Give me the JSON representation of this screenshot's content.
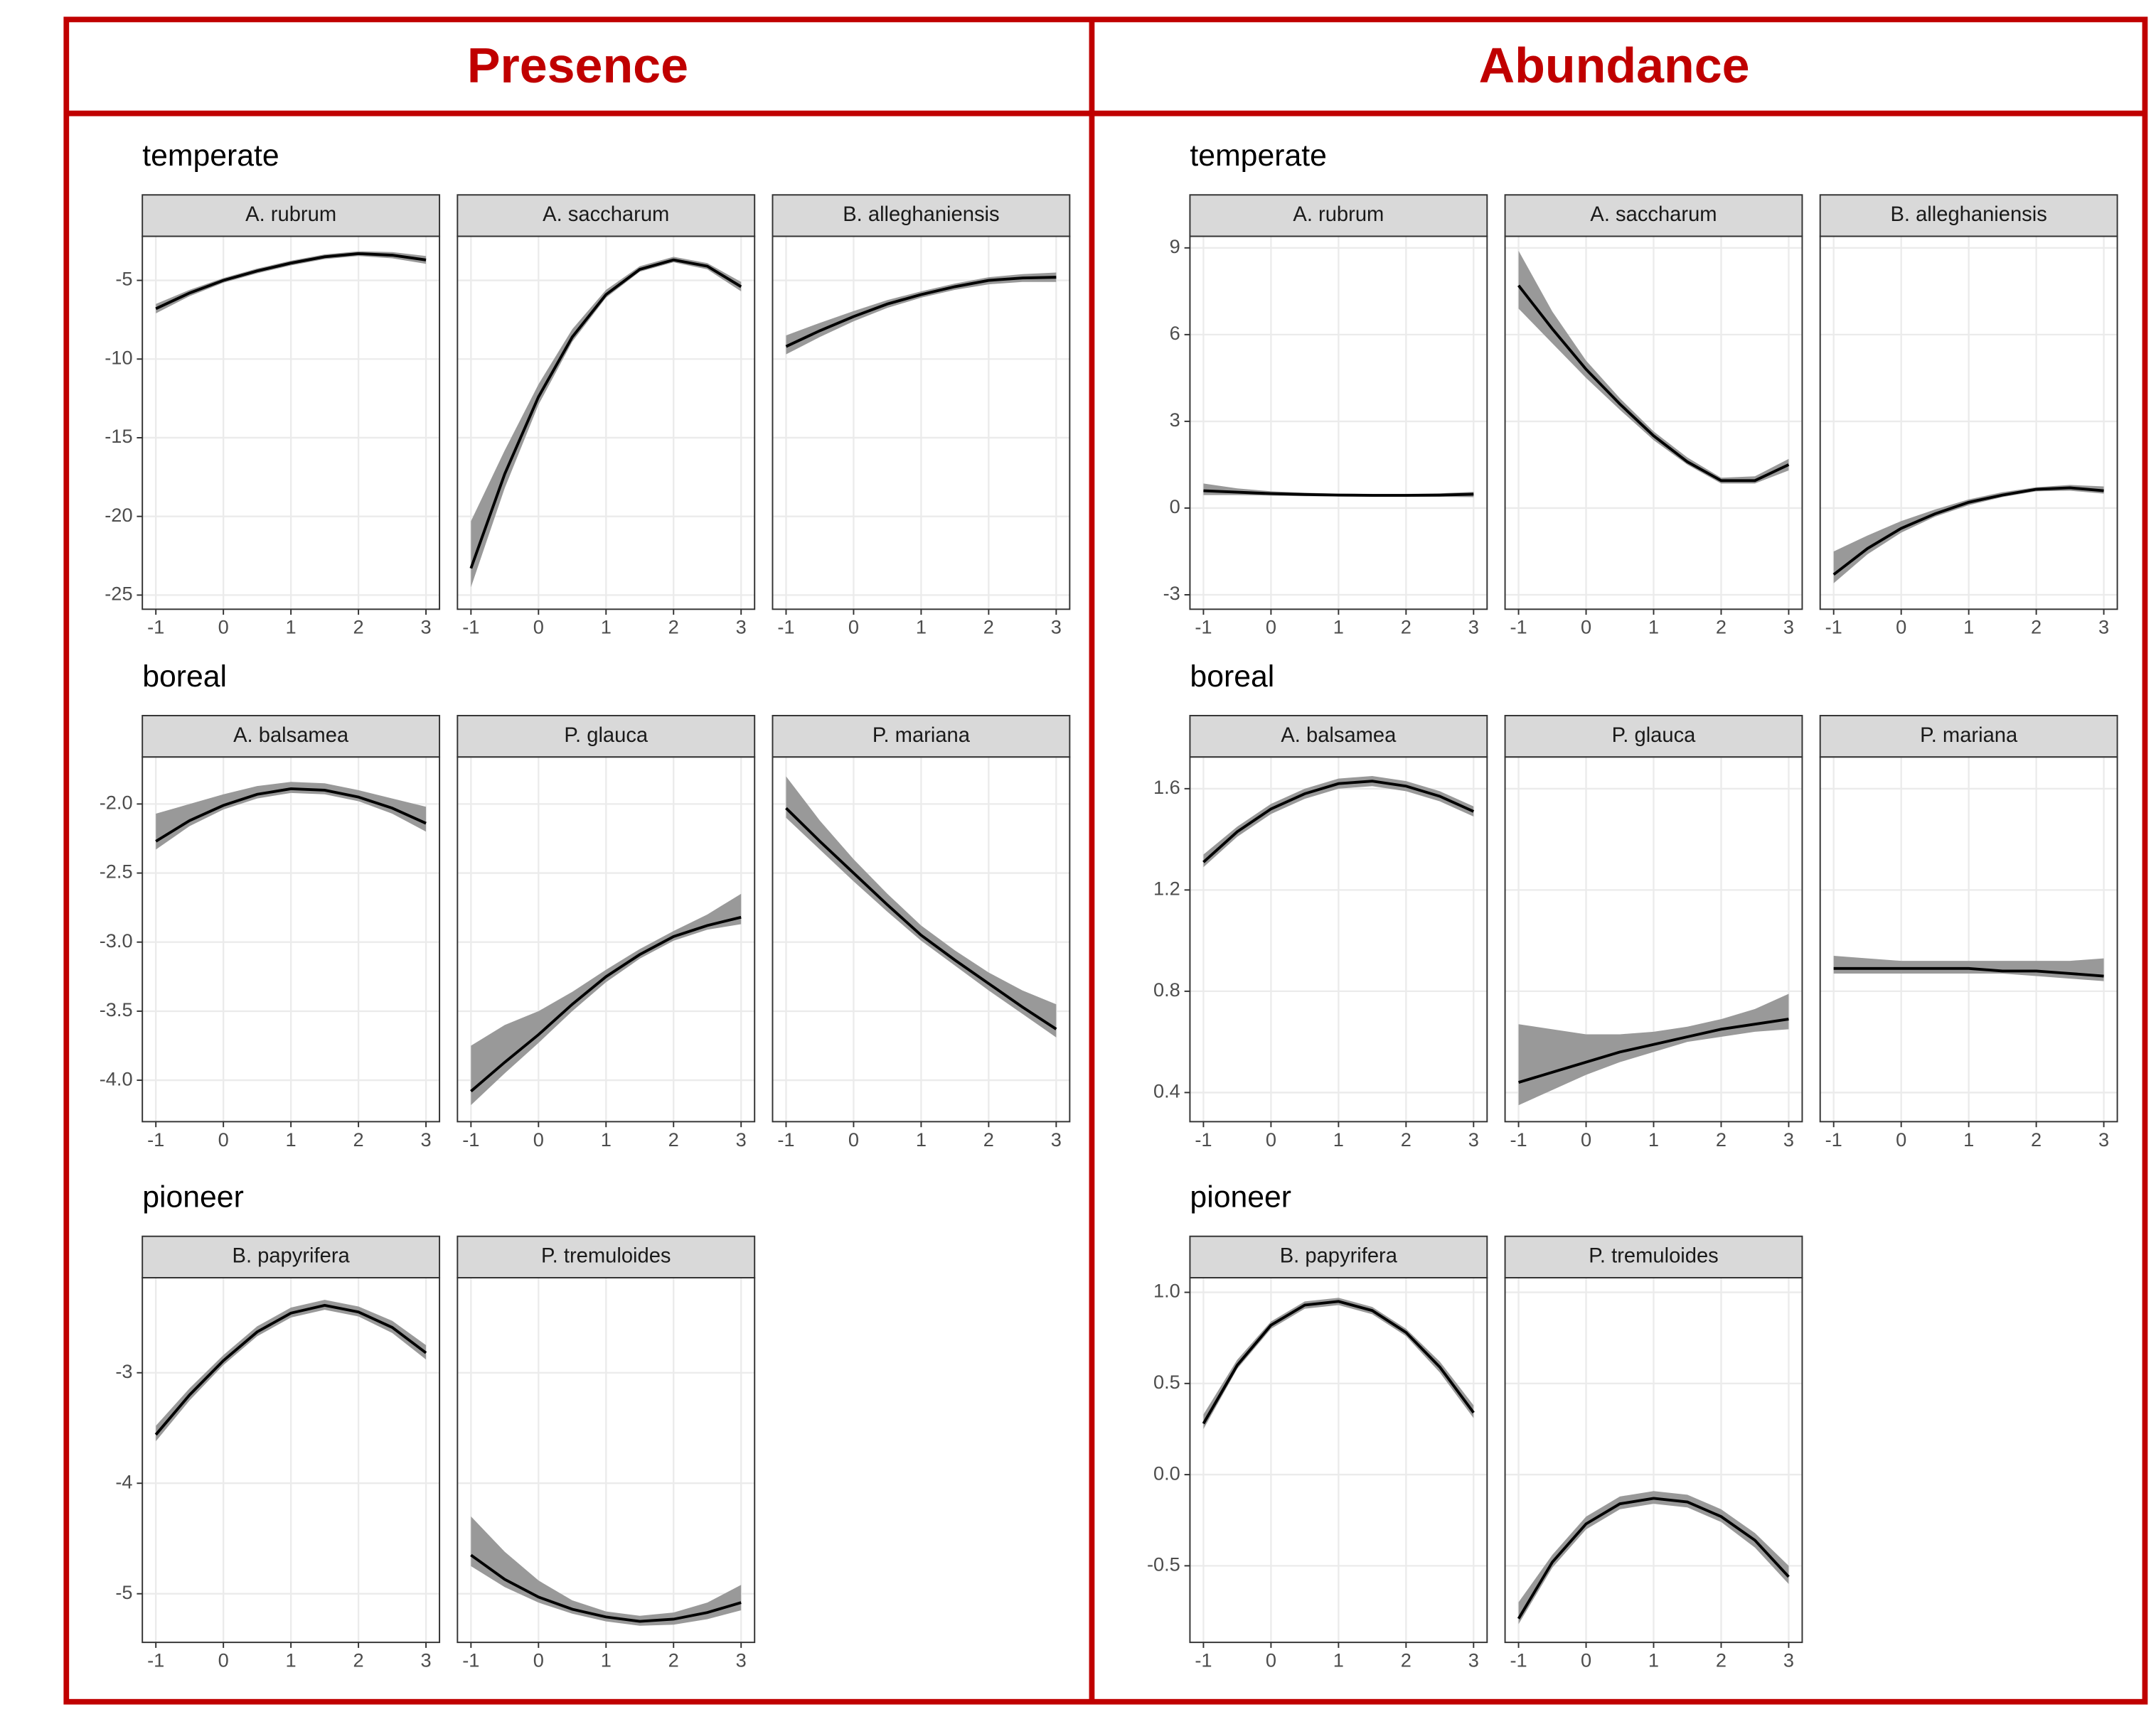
{
  "chart_data": [
    {
      "type": "line",
      "title": "Presence",
      "groups": [
        {
          "title": "temperate",
          "x": [
            -1,
            -0.5,
            0,
            0.5,
            1,
            1.5,
            2,
            2.5,
            3
          ],
          "xlim": [
            -1.2,
            3.2
          ],
          "xticks": [
            -1,
            0,
            1,
            2,
            3
          ],
          "ylim": [
            -25.9,
            -2.2
          ],
          "yticks": [
            -5,
            -10,
            -15,
            -20,
            -25
          ],
          "panels": [
            {
              "title": "A. rubrum",
              "values": [
                -6.8,
                -5.8,
                -5.0,
                -4.4,
                -3.9,
                -3.5,
                -3.3,
                -3.4,
                -3.7
              ],
              "lower": [
                -7.1,
                -6.0,
                -5.15,
                -4.55,
                -4.05,
                -3.65,
                -3.45,
                -3.6,
                -3.95
              ],
              "upper": [
                -6.5,
                -5.6,
                -4.85,
                -4.25,
                -3.75,
                -3.35,
                -3.15,
                -3.2,
                -3.45
              ]
            },
            {
              "title": "A. saccharum",
              "values": [
                -23.3,
                -17.3,
                -12.4,
                -8.6,
                -5.9,
                -4.3,
                -3.7,
                -4.1,
                -5.4
              ],
              "lower": [
                -24.5,
                -18.2,
                -12.9,
                -8.9,
                -6.1,
                -4.45,
                -3.85,
                -4.3,
                -5.7
              ],
              "upper": [
                -20.3,
                -15.8,
                -11.6,
                -8.1,
                -5.6,
                -4.1,
                -3.5,
                -3.9,
                -5.1
              ]
            },
            {
              "title": "B. alleghaniensis",
              "values": [
                -9.2,
                -8.2,
                -7.3,
                -6.5,
                -5.9,
                -5.4,
                -5.0,
                -4.85,
                -4.8
              ],
              "lower": [
                -9.7,
                -8.6,
                -7.6,
                -6.75,
                -6.1,
                -5.6,
                -5.25,
                -5.1,
                -5.1
              ],
              "upper": [
                -8.5,
                -7.7,
                -6.95,
                -6.25,
                -5.7,
                -5.2,
                -4.8,
                -4.6,
                -4.5
              ]
            }
          ]
        },
        {
          "title": "boreal",
          "x": [
            -1,
            -0.5,
            0,
            0.5,
            1,
            1.5,
            2,
            2.5,
            3
          ],
          "xlim": [
            -1.2,
            3.2
          ],
          "xticks": [
            -1,
            0,
            1,
            2,
            3
          ],
          "ylim": [
            -4.3,
            -1.66
          ],
          "yticks": [
            {
              "value": -2,
              "label": "-2.0"
            },
            -2.5,
            {
              "value": -3,
              "label": "-3.0"
            },
            -3.5,
            {
              "value": -4,
              "label": "-4.0"
            }
          ],
          "panels": [
            {
              "title": "A. balsamea",
              "values": [
                -2.27,
                -2.12,
                -2.01,
                -1.93,
                -1.89,
                -1.9,
                -1.95,
                -2.03,
                -2.14
              ],
              "lower": [
                -2.33,
                -2.16,
                -2.04,
                -1.96,
                -1.92,
                -1.93,
                -1.98,
                -2.07,
                -2.2
              ],
              "upper": [
                -2.07,
                -2.0,
                -1.93,
                -1.87,
                -1.84,
                -1.85,
                -1.9,
                -1.96,
                -2.02
              ]
            },
            {
              "title": "P. glauca",
              "values": [
                -4.08,
                -3.87,
                -3.67,
                -3.45,
                -3.25,
                -3.09,
                -2.96,
                -2.88,
                -2.82
              ],
              "lower": [
                -4.18,
                -3.95,
                -3.73,
                -3.5,
                -3.29,
                -3.12,
                -2.99,
                -2.91,
                -2.87
              ],
              "upper": [
                -3.75,
                -3.6,
                -3.5,
                -3.36,
                -3.2,
                -3.05,
                -2.92,
                -2.8,
                -2.65
              ]
            },
            {
              "title": "P. mariana",
              "values": [
                -2.03,
                -2.27,
                -2.5,
                -2.73,
                -2.95,
                -3.13,
                -3.3,
                -3.47,
                -3.63
              ],
              "lower": [
                -2.1,
                -2.33,
                -2.56,
                -2.78,
                -2.99,
                -3.17,
                -3.35,
                -3.52,
                -3.69
              ],
              "upper": [
                -1.8,
                -2.12,
                -2.4,
                -2.65,
                -2.88,
                -3.06,
                -3.22,
                -3.35,
                -3.45
              ]
            }
          ]
        },
        {
          "title": "pioneer",
          "x": [
            -1,
            -0.5,
            0,
            0.5,
            1,
            1.5,
            2,
            2.5,
            3
          ],
          "xlim": [
            -1.2,
            3.2
          ],
          "xticks": [
            -1,
            0,
            1,
            2,
            3
          ],
          "ylim": [
            -5.44,
            -2.14
          ],
          "yticks": [
            -3,
            -4,
            -5
          ],
          "panels": [
            {
              "title": "B. papyrifera",
              "values": [
                -3.56,
                -3.2,
                -2.89,
                -2.63,
                -2.46,
                -2.39,
                -2.45,
                -2.59,
                -2.82
              ],
              "lower": [
                -3.62,
                -3.25,
                -2.93,
                -2.67,
                -2.5,
                -2.43,
                -2.49,
                -2.64,
                -2.88
              ],
              "upper": [
                -3.48,
                -3.14,
                -2.84,
                -2.58,
                -2.41,
                -2.34,
                -2.4,
                -2.53,
                -2.75
              ]
            },
            {
              "title": "P. tremuloides",
              "values": [
                -4.65,
                -4.87,
                -5.03,
                -5.14,
                -5.21,
                -5.25,
                -5.23,
                -5.17,
                -5.08
              ],
              "lower": [
                -4.75,
                -4.94,
                -5.08,
                -5.18,
                -5.25,
                -5.29,
                -5.28,
                -5.23,
                -5.15
              ],
              "upper": [
                -4.3,
                -4.62,
                -4.88,
                -5.06,
                -5.16,
                -5.2,
                -5.17,
                -5.08,
                -4.92
              ]
            }
          ]
        }
      ]
    },
    {
      "type": "line",
      "title": "Abundance",
      "groups": [
        {
          "title": "temperate",
          "x": [
            -1,
            -0.5,
            0,
            0.5,
            1,
            1.5,
            2,
            2.5,
            3
          ],
          "xlim": [
            -1.2,
            3.2
          ],
          "xticks": [
            -1,
            0,
            1,
            2,
            3
          ],
          "ylim": [
            -3.5,
            9.4
          ],
          "yticks": [
            9,
            6,
            3,
            0,
            -3
          ],
          "panels": [
            {
              "title": "A. rubrum",
              "values": [
                0.6,
                0.55,
                0.5,
                0.47,
                0.45,
                0.44,
                0.44,
                0.45,
                0.48
              ],
              "lower": [
                0.45,
                0.45,
                0.43,
                0.41,
                0.4,
                0.39,
                0.39,
                0.39,
                0.38
              ],
              "upper": [
                0.85,
                0.68,
                0.58,
                0.53,
                0.5,
                0.49,
                0.49,
                0.51,
                0.56
              ]
            },
            {
              "title": "A. saccharum",
              "values": [
                7.7,
                6.2,
                4.8,
                3.6,
                2.5,
                1.6,
                0.95,
                0.95,
                1.5
              ],
              "lower": [
                6.9,
                5.7,
                4.5,
                3.4,
                2.35,
                1.5,
                0.85,
                0.85,
                1.3
              ],
              "upper": [
                8.9,
                6.8,
                5.1,
                3.8,
                2.65,
                1.75,
                1.05,
                1.1,
                1.7
              ]
            },
            {
              "title": "B. alleghaniensis",
              "values": [
                -2.3,
                -1.4,
                -0.7,
                -0.2,
                0.2,
                0.45,
                0.65,
                0.7,
                0.6
              ],
              "lower": [
                -2.6,
                -1.6,
                -0.85,
                -0.3,
                0.1,
                0.38,
                0.58,
                0.6,
                0.5
              ],
              "upper": [
                -1.5,
                -0.95,
                -0.45,
                -0.05,
                0.3,
                0.55,
                0.72,
                0.8,
                0.75
              ]
            }
          ]
        },
        {
          "title": "boreal",
          "x": [
            -1,
            -0.5,
            0,
            0.5,
            1,
            1.5,
            2,
            2.5,
            3
          ],
          "xlim": [
            -1.2,
            3.2
          ],
          "xticks": [
            -1,
            0,
            1,
            2,
            3
          ],
          "ylim": [
            0.285,
            1.725
          ],
          "yticks": [
            1.6,
            1.2,
            0.8,
            0.4
          ],
          "panels": [
            {
              "title": "A. balsamea",
              "values": [
                1.31,
                1.43,
                1.52,
                1.58,
                1.62,
                1.63,
                1.61,
                1.57,
                1.51
              ],
              "lower": [
                1.29,
                1.41,
                1.5,
                1.56,
                1.6,
                1.61,
                1.59,
                1.55,
                1.49
              ],
              "upper": [
                1.34,
                1.45,
                1.54,
                1.6,
                1.64,
                1.65,
                1.63,
                1.59,
                1.53
              ]
            },
            {
              "title": "P. glauca",
              "values": [
                0.44,
                0.48,
                0.52,
                0.56,
                0.59,
                0.62,
                0.65,
                0.67,
                0.69
              ],
              "lower": [
                0.35,
                0.41,
                0.47,
                0.52,
                0.56,
                0.6,
                0.62,
                0.64,
                0.65
              ],
              "upper": [
                0.67,
                0.65,
                0.63,
                0.63,
                0.64,
                0.66,
                0.69,
                0.73,
                0.79
              ]
            },
            {
              "title": "P. mariana",
              "values": [
                0.89,
                0.89,
                0.89,
                0.89,
                0.89,
                0.88,
                0.88,
                0.87,
                0.86
              ],
              "lower": [
                0.87,
                0.87,
                0.87,
                0.87,
                0.87,
                0.87,
                0.86,
                0.85,
                0.84
              ],
              "upper": [
                0.94,
                0.93,
                0.92,
                0.92,
                0.92,
                0.92,
                0.92,
                0.92,
                0.93
              ]
            }
          ]
        },
        {
          "title": "pioneer",
          "x": [
            -1,
            -0.5,
            0,
            0.5,
            1,
            1.5,
            2,
            2.5,
            3
          ],
          "xlim": [
            -1.2,
            3.2
          ],
          "xticks": [
            -1,
            0,
            1,
            2,
            3
          ],
          "ylim": [
            -0.92,
            1.08
          ],
          "yticks": [
            {
              "value": 1,
              "label": "1.0"
            },
            0.5,
            {
              "value": 0,
              "label": "0.0"
            },
            -0.5
          ],
          "panels": [
            {
              "title": "B. papyrifera",
              "values": [
                0.28,
                0.6,
                0.82,
                0.93,
                0.95,
                0.9,
                0.78,
                0.59,
                0.34
              ],
              "lower": [
                0.25,
                0.58,
                0.8,
                0.91,
                0.93,
                0.88,
                0.76,
                0.56,
                0.31
              ],
              "upper": [
                0.33,
                0.63,
                0.84,
                0.95,
                0.97,
                0.92,
                0.8,
                0.62,
                0.38
              ]
            },
            {
              "title": "P. tremuloides",
              "values": [
                -0.79,
                -0.48,
                -0.27,
                -0.16,
                -0.13,
                -0.15,
                -0.23,
                -0.36,
                -0.56
              ],
              "lower": [
                -0.82,
                -0.51,
                -0.3,
                -0.19,
                -0.16,
                -0.18,
                -0.26,
                -0.4,
                -0.6
              ],
              "upper": [
                -0.7,
                -0.44,
                -0.23,
                -0.12,
                -0.09,
                -0.11,
                -0.19,
                -0.32,
                -0.5
              ]
            }
          ]
        }
      ]
    }
  ]
}
